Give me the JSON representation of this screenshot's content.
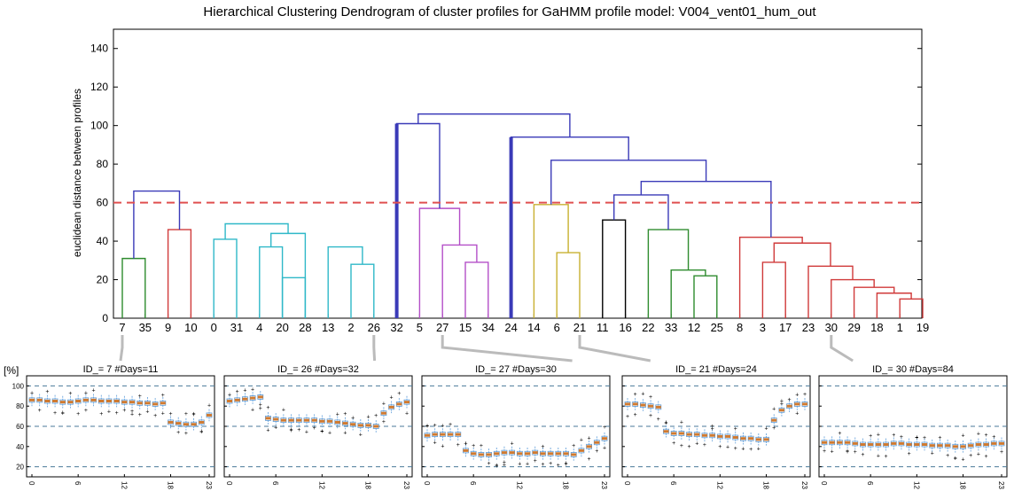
{
  "chart_data": [
    {
      "type": "dendrogram",
      "title": "Hierarchical Clustering Dendrogram of cluster profiles for GaHMM profile model:  V004_vent01_hum_out",
      "ylabel": "euclidean distance between profiles",
      "xlabel": "",
      "ylim": [
        0,
        150
      ],
      "yticks": [
        0,
        20,
        40,
        60,
        80,
        100,
        120,
        140
      ],
      "leaves": [
        "7",
        "35",
        "9",
        "10",
        "0",
        "31",
        "4",
        "20",
        "28",
        "13",
        "2",
        "26",
        "32",
        "5",
        "27",
        "15",
        "34",
        "24",
        "14",
        "6",
        "21",
        "11",
        "16",
        "22",
        "33",
        "12",
        "25",
        "8",
        "3",
        "17",
        "23",
        "30",
        "29",
        "18",
        "1",
        "19"
      ],
      "threshold": 60,
      "link_colors": {
        "green": "#2e8b2e",
        "red": "#d03a3a",
        "cyan": "#2fb8c8",
        "magenta": "#b44fc8",
        "yellow": "#c8b030",
        "black": "#000000",
        "blue": "#3a3ab8",
        "threshold": "#e05050"
      },
      "links": [
        {
          "a": 0,
          "b": 1,
          "h": 31,
          "color": "green"
        },
        {
          "a": 2,
          "b": 3,
          "h": 46,
          "color": "red"
        },
        {
          "a": "0|1",
          "b": "2|3",
          "h": 66,
          "color": "blue"
        },
        {
          "a": 6,
          "b": 7,
          "h": 37,
          "color": "cyan"
        },
        {
          "a": 7,
          "b": 8,
          "h": 21,
          "color": "cyan"
        },
        {
          "a": 10,
          "b": 11,
          "h": 28,
          "color": "cyan"
        },
        {
          "a": 4,
          "b": 5,
          "h": 41,
          "color": "cyan"
        },
        {
          "a": "6|7",
          "b": 8,
          "h": 44,
          "color": "cyan"
        },
        {
          "a": 9,
          "b": "10|11",
          "h": 37,
          "color": "cyan"
        },
        {
          "a": "4|5",
          "b": "6|8",
          "h": 49,
          "color": "cyan"
        },
        {
          "a": "0|3",
          "b": "4|11",
          "h": 86,
          "color": "blue"
        },
        {
          "a": 15,
          "b": 16,
          "h": 29,
          "color": "magenta"
        },
        {
          "a": 14,
          "b": "15|16",
          "h": 38,
          "color": "magenta"
        },
        {
          "a": 13,
          "b": "14|16",
          "h": 57,
          "color": "magenta"
        },
        {
          "a": 12,
          "b": "13|16",
          "h": 101,
          "color": "blue"
        },
        {
          "a": 19,
          "b": 20,
          "h": 34,
          "color": "yellow"
        },
        {
          "a": 18,
          "b": "19|20",
          "h": 59,
          "color": "yellow"
        },
        {
          "a": 21,
          "b": 22,
          "h": 51,
          "color": "black"
        },
        {
          "a": 25,
          "b": 26,
          "h": 22,
          "color": "green"
        },
        {
          "a": 24,
          "b": "25|26",
          "h": 25,
          "color": "green"
        },
        {
          "a": 23,
          "b": "24|26",
          "h": 46,
          "color": "green"
        },
        {
          "a": 34,
          "b": 35,
          "h": 10,
          "color": "red"
        },
        {
          "a": 33,
          "b": "34|35",
          "h": 13,
          "color": "red"
        },
        {
          "a": 32,
          "b": "33|35",
          "h": 16,
          "color": "red"
        },
        {
          "a": 31,
          "b": "32|35",
          "h": 20,
          "color": "red"
        },
        {
          "a": 30,
          "b": "31|35",
          "h": 27,
          "color": "red"
        },
        {
          "a": 28,
          "b": 29,
          "h": 29,
          "color": "red"
        },
        {
          "a": "28|29",
          "b": "30|35",
          "h": 39,
          "color": "red"
        },
        {
          "a": 27,
          "b": "28|35",
          "h": 42,
          "color": "red"
        },
        {
          "a": "21|22",
          "b": "23|26",
          "h": 64,
          "color": "blue"
        },
        {
          "a": "21|26",
          "b": "27|35",
          "h": 71,
          "color": "blue"
        },
        {
          "a": "18|20",
          "b": "21|35",
          "h": 82,
          "color": "blue"
        },
        {
          "a": 17,
          "b": "18|35",
          "h": 94,
          "color": "blue"
        },
        {
          "a": "12|16",
          "b": "17|35",
          "h": 106,
          "color": "blue"
        },
        {
          "a": "0|11",
          "b": "12|35",
          "h": 142,
          "color": "blue"
        }
      ],
      "bold_stems": [
        12,
        17
      ],
      "callout_pairs": [
        [
          "7",
          0
        ],
        [
          "26",
          1
        ],
        [
          "27",
          2
        ],
        [
          "21",
          3
        ],
        [
          "30",
          4
        ]
      ]
    },
    {
      "type": "boxplot",
      "panels": [
        {
          "title": "ID_= 7 #Days=11",
          "ylabel": "[%]",
          "medians": [
            86,
            86,
            85,
            85,
            84,
            84,
            85,
            86,
            86,
            85,
            85,
            85,
            84,
            84,
            83,
            83,
            82,
            83,
            64,
            63,
            62,
            62,
            64,
            71
          ]
        },
        {
          "title": "ID_= 26 #Days=32",
          "ylabel": "",
          "medians": [
            85,
            86,
            87,
            88,
            89,
            68,
            67,
            66,
            66,
            66,
            66,
            66,
            65,
            65,
            64,
            63,
            62,
            61,
            61,
            60,
            73,
            79,
            82,
            84
          ]
        },
        {
          "title": "ID_= 27 #Days=30",
          "ylabel": "",
          "medians": [
            51,
            52,
            52,
            52,
            52,
            36,
            33,
            32,
            32,
            33,
            34,
            34,
            33,
            33,
            34,
            33,
            33,
            33,
            33,
            32,
            36,
            40,
            44,
            48
          ]
        },
        {
          "title": "ID_= 21 #Days=24",
          "ylabel": "",
          "medians": [
            82,
            82,
            81,
            80,
            79,
            55,
            53,
            53,
            52,
            52,
            51,
            51,
            50,
            50,
            49,
            48,
            48,
            47,
            47,
            66,
            76,
            80,
            82,
            82
          ]
        },
        {
          "title": "ID_= 30 #Days=84",
          "ylabel": "",
          "medians": [
            44,
            44,
            44,
            44,
            43,
            42,
            42,
            42,
            42,
            43,
            43,
            42,
            42,
            42,
            41,
            41,
            41,
            40,
            40,
            41,
            42,
            42,
            43,
            43
          ]
        }
      ],
      "ylim": [
        10,
        110
      ],
      "yticks": [
        20,
        40,
        60,
        80,
        100
      ],
      "xticks": [
        "0",
        "6",
        "12",
        "18",
        "23"
      ],
      "hlines": [
        20,
        60,
        100
      ],
      "colors": {
        "median": "#d07a30",
        "box": "#5a9ad8",
        "line": "#4a7a9a"
      }
    }
  ]
}
